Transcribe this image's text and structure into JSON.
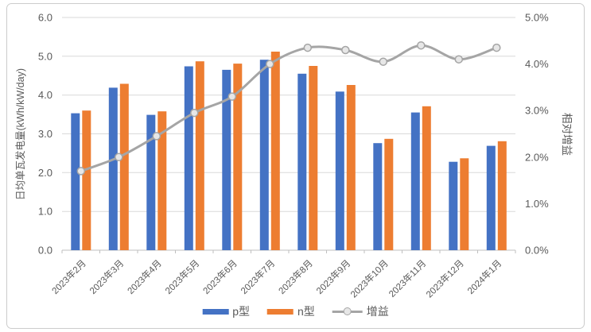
{
  "chart_data": {
    "type": "bar",
    "subtype": "bar-line-combo",
    "title": "",
    "categories": [
      "2023年2月",
      "2023年3月",
      "2023年4月",
      "2023年5月",
      "2023年6月",
      "2023年7月",
      "2023年8月",
      "2023年9月",
      "2023年10月",
      "2023年11月",
      "2023年12月",
      "2024年1月"
    ],
    "series": [
      {
        "name": "p型",
        "type": "bar",
        "axis": "left",
        "color": "#4472C4",
        "values": [
          3.53,
          4.19,
          3.49,
          4.74,
          4.65,
          4.91,
          4.55,
          4.09,
          2.76,
          3.55,
          2.28,
          2.69
        ]
      },
      {
        "name": "n型",
        "type": "bar",
        "axis": "left",
        "color": "#ED7D31",
        "values": [
          3.6,
          4.29,
          3.58,
          4.87,
          4.81,
          5.12,
          4.75,
          4.26,
          2.87,
          3.71,
          2.37,
          2.81
        ]
      },
      {
        "name": "增益",
        "type": "line",
        "axis": "right",
        "color": "#A5A5A5",
        "marker": "circle",
        "values": [
          1.7,
          2.0,
          2.45,
          2.95,
          3.3,
          4.0,
          4.35,
          4.3,
          4.05,
          4.4,
          4.1,
          4.35
        ]
      }
    ],
    "left_axis": {
      "title": "日均单瓦发电量(kWh/kW/day)",
      "min": 0,
      "max": 6,
      "step": 1,
      "tick_labels": [
        "0.0",
        "1.0",
        "2.0",
        "3.0",
        "4.0",
        "5.0",
        "6.0"
      ]
    },
    "right_axis": {
      "title": "相对增益",
      "min": 0,
      "max": 5,
      "step": 1,
      "tick_labels": [
        "0.0%",
        "1.0%",
        "2.0%",
        "3.0%",
        "4.0%",
        "5.0%"
      ]
    },
    "grid": true,
    "legend_position": "bottom",
    "x_label_rotation_deg": -45
  },
  "style_colors": {
    "panel_border": "#CCCCCC",
    "gridline": "#D9D9D9",
    "axis_line": "#BFBFBF",
    "text": "#595959",
    "marker_fill": "#E7E7E7",
    "background": "#FFFFFF"
  }
}
